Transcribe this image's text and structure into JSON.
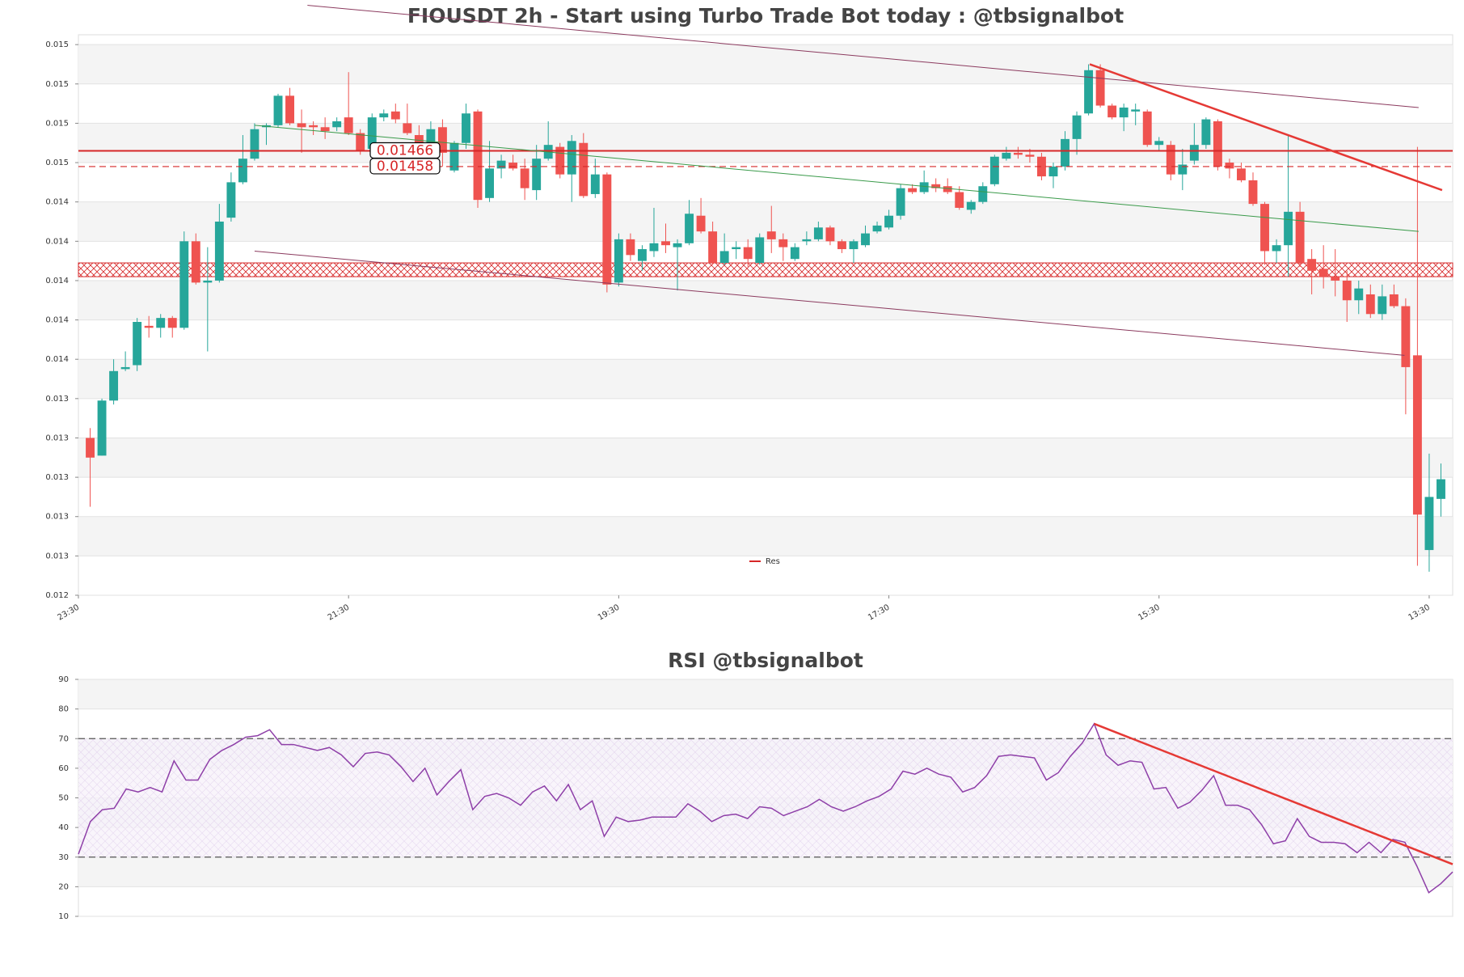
{
  "chart_data": [
    {
      "type": "candlestick",
      "title": "FIOUSDT 2h - Start using Turbo Trade Bot today : @tbsignalbot",
      "x": [
        1,
        2,
        3,
        4,
        5,
        6,
        7,
        8,
        9,
        10,
        11,
        12,
        13,
        14,
        15,
        16,
        17,
        18,
        19,
        20,
        21,
        22,
        23,
        24,
        25,
        26,
        27,
        28,
        29,
        30,
        31,
        32,
        33,
        34,
        35,
        36,
        37,
        38,
        39,
        40,
        41,
        42,
        43,
        44,
        45,
        46,
        47,
        48,
        49,
        50,
        51,
        52,
        53,
        54,
        55,
        56,
        57,
        58,
        59,
        60,
        61,
        62,
        63,
        64,
        65,
        66,
        67,
        68,
        69,
        70,
        71,
        72,
        73,
        74,
        75,
        76,
        77,
        78,
        79,
        80,
        81,
        82,
        83,
        84,
        85,
        86,
        87,
        88,
        89,
        90,
        91,
        92,
        93,
        94,
        95,
        96,
        97,
        98,
        99,
        100,
        101,
        102,
        103,
        104,
        105,
        106,
        107,
        108,
        109,
        110,
        111,
        112,
        113,
        114,
        115,
        116
      ],
      "open": [
        0.0132,
        0.01311,
        0.01339,
        0.01355,
        0.01357,
        0.01377,
        0.01376,
        0.01381,
        0.01376,
        0.0142,
        0.01399,
        0.014,
        0.01432,
        0.0145,
        0.01462,
        0.01478,
        0.01479,
        0.01494,
        0.0148,
        0.01479,
        0.01478,
        0.01478,
        0.01483,
        0.01475,
        0.01467,
        0.01483,
        0.01486,
        0.0148,
        0.01474,
        0.01466,
        0.01478,
        0.01456,
        0.0147,
        0.01486,
        0.01442,
        0.01457,
        0.0146,
        0.01457,
        0.01446,
        0.01462,
        0.01468,
        0.01454,
        0.0147,
        0.01444,
        0.01454,
        0.01399,
        0.01421,
        0.0141,
        0.01415,
        0.0142,
        0.01417,
        0.01419,
        0.01433,
        0.01425,
        0.01409,
        0.01416,
        0.01417,
        0.01409,
        0.01425,
        0.01421,
        0.01411,
        0.0142,
        0.01421,
        0.01427,
        0.0142,
        0.01416,
        0.01418,
        0.01425,
        0.01427,
        0.01433,
        0.01447,
        0.01445,
        0.01449,
        0.01448,
        0.01445,
        0.01436,
        0.0144,
        0.01449,
        0.01462,
        0.01465,
        0.01464,
        0.01463,
        0.01453,
        0.01458,
        0.01472,
        0.01485,
        0.01507,
        0.01489,
        0.01483,
        0.01486,
        0.01486,
        0.01469,
        0.01469,
        0.01454,
        0.01461,
        0.01469,
        0.01481,
        0.0146,
        0.01457,
        0.01451,
        0.01439,
        0.01415,
        0.01418,
        0.01435,
        0.01411,
        0.01406,
        0.01402,
        0.014,
        0.0139,
        0.01393,
        0.01383,
        0.01393,
        0.01387,
        0.01362,
        0.01263,
        0.01289
      ],
      "high": [
        0.01325,
        0.0134,
        0.0136,
        0.01364,
        0.01381,
        0.01382,
        0.01383,
        0.01382,
        0.01425,
        0.01424,
        0.01417,
        0.01439,
        0.01455,
        0.01474,
        0.0148,
        0.0148,
        0.01495,
        0.01498,
        0.01487,
        0.01481,
        0.01483,
        0.01483,
        0.01506,
        0.01477,
        0.01485,
        0.01487,
        0.0149,
        0.0149,
        0.01479,
        0.01481,
        0.01482,
        0.01471,
        0.0149,
        0.01487,
        0.01471,
        0.01464,
        0.01464,
        0.01462,
        0.01469,
        0.01481,
        0.0147,
        0.01474,
        0.01475,
        0.01462,
        0.01455,
        0.01424,
        0.01424,
        0.01418,
        0.01437,
        0.01429,
        0.01421,
        0.01441,
        0.01442,
        0.0143,
        0.01424,
        0.0142,
        0.01421,
        0.01424,
        0.01438,
        0.01424,
        0.01419,
        0.01425,
        0.0143,
        0.01428,
        0.01421,
        0.01421,
        0.01428,
        0.0143,
        0.01436,
        0.01449,
        0.01449,
        0.01456,
        0.01452,
        0.01452,
        0.01448,
        0.01441,
        0.0145,
        0.01464,
        0.01468,
        0.01468,
        0.01467,
        0.01465,
        0.0146,
        0.01476,
        0.01486,
        0.0151,
        0.0151,
        0.0149,
        0.0149,
        0.0149,
        0.01487,
        0.01473,
        0.01471,
        0.01467,
        0.0148,
        0.01483,
        0.01482,
        0.01462,
        0.0146,
        0.01455,
        0.0144,
        0.01421,
        0.01474,
        0.0144,
        0.01416,
        0.01418,
        0.01416,
        0.01405,
        0.014,
        0.01398,
        0.01398,
        0.01398,
        0.01391,
        0.01468,
        0.01312,
        0.01307
      ],
      "low": [
        0.01285,
        0.01311,
        0.01337,
        0.01354,
        0.01354,
        0.01371,
        0.01371,
        0.01371,
        0.01375,
        0.01398,
        0.01364,
        0.01399,
        0.0143,
        0.01449,
        0.01461,
        0.01469,
        0.01478,
        0.01479,
        0.01465,
        0.01474,
        0.01472,
        0.01476,
        0.01474,
        0.01464,
        0.01464,
        0.01481,
        0.0148,
        0.01474,
        0.0146,
        0.01462,
        0.01458,
        0.01455,
        0.01467,
        0.01437,
        0.0144,
        0.01452,
        0.01456,
        0.01441,
        0.01441,
        0.01461,
        0.01452,
        0.0144,
        0.01442,
        0.01442,
        0.01394,
        0.01397,
        0.0141,
        0.01405,
        0.01412,
        0.01414,
        0.01395,
        0.01418,
        0.01424,
        0.01408,
        0.01408,
        0.01411,
        0.01407,
        0.01408,
        0.01414,
        0.0141,
        0.0141,
        0.01418,
        0.0142,
        0.01418,
        0.01414,
        0.01409,
        0.01417,
        0.01424,
        0.01426,
        0.01431,
        0.01444,
        0.01444,
        0.01445,
        0.01444,
        0.01436,
        0.01434,
        0.01439,
        0.01448,
        0.01461,
        0.01462,
        0.0146,
        0.01451,
        0.01447,
        0.01456,
        0.01464,
        0.01484,
        0.01488,
        0.01482,
        0.01476,
        0.01479,
        0.01468,
        0.01466,
        0.01451,
        0.01446,
        0.01459,
        0.01467,
        0.01456,
        0.01452,
        0.0145,
        0.01438,
        0.01408,
        0.01409,
        0.01402,
        0.01407,
        0.01393,
        0.01396,
        0.01392,
        0.01379,
        0.01383,
        0.01381,
        0.0138,
        0.01386,
        0.01332,
        0.01255,
        0.01252,
        0.0128
      ],
      "close": [
        0.0131,
        0.01339,
        0.01354,
        0.01356,
        0.01379,
        0.01376,
        0.01381,
        0.01376,
        0.0142,
        0.01399,
        0.014,
        0.0143,
        0.0145,
        0.01462,
        0.01477,
        0.01479,
        0.01494,
        0.0148,
        0.01478,
        0.01478,
        0.01476,
        0.01481,
        0.01475,
        0.01466,
        0.01483,
        0.01485,
        0.01482,
        0.01475,
        0.01467,
        0.01477,
        0.01465,
        0.0147,
        0.01485,
        0.01441,
        0.01457,
        0.01461,
        0.01457,
        0.01447,
        0.01462,
        0.01469,
        0.01454,
        0.01471,
        0.01443,
        0.01454,
        0.01398,
        0.01421,
        0.01413,
        0.01416,
        0.01419,
        0.01418,
        0.01419,
        0.01434,
        0.01425,
        0.01409,
        0.01415,
        0.01417,
        0.01411,
        0.01422,
        0.01421,
        0.01417,
        0.01417,
        0.01421,
        0.01427,
        0.0142,
        0.01416,
        0.0142,
        0.01424,
        0.01428,
        0.01433,
        0.01447,
        0.01445,
        0.0145,
        0.01447,
        0.01445,
        0.01437,
        0.0144,
        0.01448,
        0.01463,
        0.01465,
        0.01464,
        0.01463,
        0.01453,
        0.01458,
        0.01472,
        0.01484,
        0.01507,
        0.01489,
        0.01483,
        0.01488,
        0.01487,
        0.01469,
        0.01471,
        0.01454,
        0.01459,
        0.01469,
        0.01482,
        0.01458,
        0.01457,
        0.01451,
        0.01439,
        0.01415,
        0.01418,
        0.01435,
        0.01409,
        0.01405,
        0.01402,
        0.014,
        0.0139,
        0.01396,
        0.01383,
        0.01392,
        0.01387,
        0.01356,
        0.01281,
        0.0129,
        0.01299
      ],
      "up_color": "#26a69a",
      "down_color": "#ef5350",
      "xlim": [
        0,
        117
      ],
      "xticks": [
        {
          "value": 0,
          "label": "23:30"
        },
        {
          "value": 23,
          "label": "21:30"
        },
        {
          "value": 46,
          "label": "19:30"
        },
        {
          "value": 69,
          "label": "17:30"
        },
        {
          "value": 92,
          "label": "15:30"
        },
        {
          "value": 115,
          "label": "13:30"
        }
      ],
      "ylim": [
        0.0124,
        0.01525
      ],
      "yticks": [
        {
          "value": 0.0124,
          "label": "0.012"
        },
        {
          "value": 0.0126,
          "label": "0.013"
        },
        {
          "value": 0.0128,
          "label": "0.013"
        },
        {
          "value": 0.013,
          "label": "0.013"
        },
        {
          "value": 0.0132,
          "label": "0.013"
        },
        {
          "value": 0.0134,
          "label": "0.013"
        },
        {
          "value": 0.0136,
          "label": "0.014"
        },
        {
          "value": 0.0138,
          "label": "0.014"
        },
        {
          "value": 0.014,
          "label": "0.014"
        },
        {
          "value": 0.0142,
          "label": "0.014"
        },
        {
          "value": 0.0144,
          "label": "0.014"
        },
        {
          "value": 0.0146,
          "label": "0.015"
        },
        {
          "value": 0.0148,
          "label": "0.015"
        },
        {
          "value": 0.015,
          "label": "0.015"
        },
        {
          "value": 0.0152,
          "label": "0.015"
        }
      ],
      "grid": true,
      "levels": [
        {
          "value": 0.01466,
          "style": "solid",
          "color": "#d62728"
        },
        {
          "value": 0.01458,
          "style": "dashed",
          "color": "#d62728"
        }
      ],
      "zones": [
        {
          "name": "Res",
          "range": [
            0.01402,
            0.01409
          ],
          "color": "#d62728"
        }
      ],
      "trend_lines": [
        {
          "x": [
            19.5,
            114.1
          ],
          "y": [
            0.0154,
            0.01488
          ],
          "color": "#8b3a5e",
          "width": 1
        },
        {
          "x": [
            15,
            112.9
          ],
          "y": [
            0.01415,
            0.01362
          ],
          "color": "#8b3a5e",
          "width": 1
        },
        {
          "x": [
            15,
            114.1
          ],
          "y": [
            0.01479,
            0.01425
          ],
          "color": "#3a9a4a",
          "width": 1
        },
        {
          "x": [
            86.1,
            116.1
          ],
          "y": [
            0.0151,
            0.01446
          ],
          "color": "#e53935",
          "width": 2.5
        }
      ],
      "legend": "lower center"
    },
    {
      "type": "line",
      "title": "RSI @tbsignalbot",
      "values": [
        31,
        42,
        46,
        46.5,
        53,
        52,
        53.5,
        52,
        62.5,
        56,
        56,
        63,
        66,
        68,
        70.5,
        71,
        73,
        68,
        68,
        67,
        66,
        67,
        64.5,
        60.5,
        65,
        65.5,
        64.5,
        60.5,
        55.5,
        60,
        51,
        55.5,
        59.5,
        46,
        50.5,
        51.5,
        50,
        47.5,
        52,
        54,
        49,
        54.5,
        46,
        49,
        37,
        43.5,
        42,
        42.5,
        43.5,
        43.5,
        43.5,
        48,
        45.5,
        42,
        44,
        44.5,
        43,
        47,
        46.5,
        44,
        45.5,
        47,
        49.5,
        47,
        45.5,
        47,
        49,
        50.5,
        53,
        59,
        58,
        60,
        58,
        57,
        52,
        53.5,
        57.5,
        64,
        64.5,
        64,
        63.5,
        56,
        58.5,
        64,
        68.5,
        75,
        64.5,
        61,
        62.5,
        62,
        53,
        53.5,
        46.5,
        48.5,
        52.5,
        57.5,
        47.5,
        47.5,
        46,
        41,
        34.5,
        35.5,
        43,
        37,
        35,
        35,
        34.5,
        31.5,
        35,
        31.5,
        36,
        35,
        27,
        18,
        21,
        25
      ],
      "color": "#8e3fa8",
      "xlim": [
        0,
        115
      ],
      "ylim": [
        10,
        90
      ],
      "yticks": [
        10,
        20,
        30,
        40,
        50,
        60,
        70,
        80,
        90
      ],
      "grid": true,
      "levels": [
        {
          "value": 70,
          "style": "dashed",
          "color": "#555555"
        },
        {
          "value": 30,
          "style": "dashed",
          "color": "#555555"
        }
      ],
      "trend_lines": [
        {
          "x": [
            85,
            115
          ],
          "y": [
            75,
            27.6
          ],
          "color": "#e53935",
          "width": 2.5
        }
      ]
    }
  ]
}
